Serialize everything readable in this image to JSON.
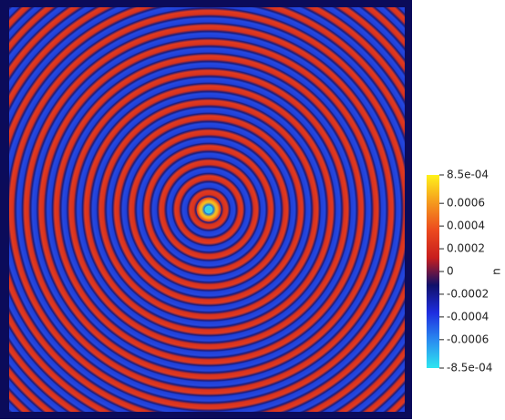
{
  "chart_data": {
    "type": "field",
    "ylabel": "u",
    "ylim": [
      -0.00085,
      0.00085
    ],
    "yticks": [
      {
        "value": -0.00085,
        "label": "-8.5e-04"
      },
      -0.0006,
      -0.0004,
      -0.0002,
      0,
      0.0002,
      0.0004,
      0.0006,
      {
        "value": 0.00085,
        "label": "8.5e-04"
      }
    ],
    "colormap": [
      "#2ee6f0",
      "#2a8cf0",
      "#1e2ee0",
      "#10106a",
      "#c81e1e",
      "#ec4a1e",
      "#f59a1e",
      "#fff21a"
    ]
  }
}
